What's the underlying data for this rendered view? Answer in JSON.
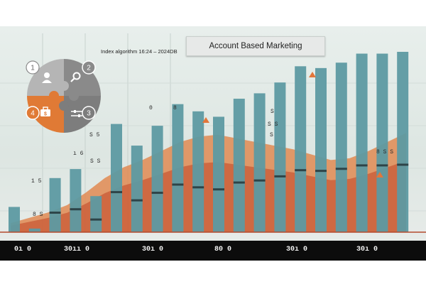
{
  "title": "Account Based Marketing",
  "subtitle": "Index algorithm 16:24 – 2024DB",
  "xaxis": {
    "ticks": [
      "0ı 0",
      "30ıı 0",
      "30ı 0",
      "80 0",
      "30ı 0",
      "30ı 0"
    ]
  },
  "puzzle": {
    "steps": [
      "1",
      "2",
      "3",
      "4"
    ],
    "icons": [
      "person-icon",
      "magnifier-icon",
      "sliders-icon",
      "briefcase-icon"
    ]
  },
  "colors": {
    "bar": "#5d9aa2",
    "bar_dark": "#2d4448",
    "area_light": "#e08a52",
    "area_dark": "#c85a35",
    "accent": "#e2763a",
    "puzzle_gray": "#8a8a8a",
    "puzzle_light": "#b5b5b5",
    "puzzle_orange": "#e07a35"
  },
  "chart_data": {
    "type": "bar",
    "title": "Account Based Marketing",
    "subtitle": "Index algorithm 16:24 – 2024DB",
    "xlabel": "",
    "ylabel": "",
    "ylim": [
      0,
      100
    ],
    "grid": true,
    "bar_values": [
      14,
      2,
      30,
      35,
      20,
      60,
      48,
      59,
      71,
      67,
      64,
      74,
      77,
      83,
      92,
      91,
      94,
      99,
      99,
      100
    ],
    "area_values": [
      5,
      8,
      11,
      15,
      22,
      30,
      36,
      40,
      45,
      50,
      53,
      54,
      52,
      50,
      48,
      46,
      43,
      40,
      41,
      45,
      50,
      55
    ],
    "data_labels": [
      "1 5",
      "8 S",
      "ı 6",
      "S 5",
      "S S",
      "0",
      "8",
      "S",
      "S S",
      "S",
      "8 S S"
    ]
  }
}
